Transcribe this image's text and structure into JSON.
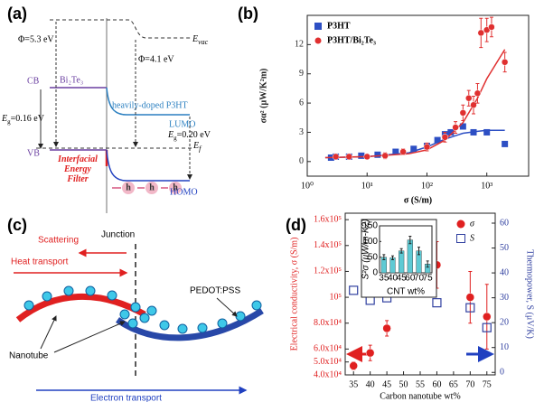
{
  "diagram_a": {
    "panel_label": "(a)",
    "phi_left": "Φ=5.3 eV",
    "phi_right": "Φ=4.1 eV",
    "evac": {
      "main": "E",
      "sub": "vac"
    },
    "cb": "CB",
    "bi2te3": "Bi₂Te₃",
    "p3ht": "heavily-doped P3HT",
    "lumo": "LUMO",
    "eg_left": {
      "main": "E",
      "sub": "g",
      "rest": "=0.16 eV"
    },
    "eg_right": {
      "main": "E",
      "sub": "g",
      "rest": "=0.20 eV"
    },
    "ef": {
      "main": "E",
      "sub": "f"
    },
    "vb": "VB",
    "filter": [
      "Interfacial",
      "Energy",
      "Filter"
    ],
    "homo": "HOMO",
    "holes": [
      "h",
      "h",
      "h"
    ]
  },
  "diagram_c": {
    "panel_label": "(c)",
    "junction": "Junction",
    "scattering": "Scattering",
    "heat": "Heat transport",
    "pedot": "PEDOT:PSS",
    "nanotube": "Nanotube",
    "electron": "Electron transport"
  },
  "chart_data": [
    {
      "type": "scatter",
      "panel_label": "(b)",
      "xlabel": "σ (S/m)",
      "ylabel": "σα² (μW/K²m)",
      "xscale": "log",
      "xlim": [
        1,
        5000
      ],
      "ylim": [
        -1.5,
        15
      ],
      "xticks": [
        {
          "value": 1,
          "label": "10⁰"
        },
        {
          "value": 10,
          "label": "10¹"
        },
        {
          "value": 100,
          "label": "10²"
        },
        {
          "value": 1000,
          "label": "10³"
        }
      ],
      "yticks": [
        0,
        3,
        6,
        9,
        12
      ],
      "legend": "upper left",
      "series": [
        {
          "name": "P3HT",
          "color": "#2d4fc4",
          "marker": "square",
          "x": [
            2.5,
            3,
            5,
            8,
            15,
            30,
            60,
            100,
            150,
            200,
            250,
            400,
            600,
            1000,
            2000
          ],
          "values": [
            0.4,
            0.5,
            0.5,
            0.6,
            0.7,
            1.0,
            1.3,
            1.6,
            2.2,
            2.8,
            3.0,
            3.6,
            3.0,
            3.0,
            1.8
          ],
          "fit": {
            "x": [
              2,
              10,
              50,
              100,
              200,
              400,
              700,
              1000,
              2000
            ],
            "values": [
              0.4,
              0.5,
              0.9,
              1.5,
              2.3,
              2.9,
              3.1,
              3.2,
              3.2
            ]
          }
        },
        {
          "name": "P3HT/Bi₂Te₃",
          "color": "#e03030",
          "marker": "circle",
          "x": [
            3,
            5,
            10,
            20,
            40,
            100,
            200,
            300,
            400,
            500,
            600,
            700,
            800,
            1000,
            1200,
            2000
          ],
          "values": [
            0.5,
            0.5,
            0.5,
            0.6,
            1.0,
            1.5,
            2.5,
            3.5,
            5.0,
            6.5,
            5.8,
            7.0,
            13.2,
            13.5,
            13.8,
            10.2
          ],
          "errors": [
            0.2,
            0.2,
            0.2,
            0.3,
            0.3,
            0.4,
            0.5,
            0.6,
            0.8,
            0.8,
            0.9,
            1.0,
            1.5,
            1.2,
            1.0,
            1.0
          ],
          "fit": {
            "x": [
              2,
              10,
              50,
              100,
              200,
              400,
              700,
              1000,
              2000
            ],
            "values": [
              0.4,
              0.5,
              0.8,
              1.2,
              2.2,
              4.0,
              6.5,
              8.5,
              11.5
            ]
          }
        }
      ]
    },
    {
      "type": "scatter",
      "panel_label": "(d)",
      "xlabel": "Carbon nanotube wt%",
      "ylabel": "Electrical conductivity, σ (S/m)",
      "y2label": "Thermopower, S (μV/K)",
      "y_color": "#e02020",
      "y2_color": "#3040a0",
      "x": [
        35,
        40,
        45,
        60,
        70,
        75
      ],
      "xlim": [
        32.5,
        77.5
      ],
      "xticks": [
        35,
        40,
        45,
        50,
        55,
        60,
        65,
        70,
        75
      ],
      "ylim": [
        40000,
        165000
      ],
      "yticks": [
        {
          "value": 40000,
          "label": "4.0x10⁴"
        },
        {
          "value": 50000,
          "label": "5.0x10⁴"
        },
        {
          "value": 60000,
          "label": "6.0x10⁴"
        },
        {
          "value": 80000,
          "label": "8.0x10⁴"
        },
        {
          "value": 100000,
          "label": "10⁵"
        },
        {
          "value": 120000,
          "label": "1.2x10⁵"
        },
        {
          "value": 140000,
          "label": "1.4x10⁵"
        },
        {
          "value": 160000,
          "label": "1.6x10⁵"
        }
      ],
      "y2lim": [
        -1,
        64
      ],
      "y2ticks": [
        0,
        10,
        20,
        30,
        40,
        50,
        60
      ],
      "legend": "upper right",
      "series": [
        {
          "name": "σ",
          "color": "#e02020",
          "marker": "circle",
          "values": [
            47000,
            57000,
            76000,
            125000,
            100000,
            85000
          ],
          "errors": [
            3000,
            6000,
            6000,
            18000,
            20000,
            25000
          ]
        },
        {
          "name": "S",
          "color": "#3040a0",
          "marker": "open-square",
          "axis": "y2",
          "values": [
            33,
            29,
            30,
            28,
            26,
            18
          ]
        }
      ]
    },
    {
      "type": "bar",
      "xlabel": "CNT wt%",
      "ylabel": "S²σ (μW/m-K2)",
      "categories": [
        "35",
        "40",
        "45",
        "60",
        "70",
        "75"
      ],
      "values": [
        50,
        48,
        70,
        105,
        70,
        28
      ],
      "errors": [
        8,
        6,
        7,
        12,
        12,
        10
      ],
      "color": "#5ecad4",
      "ylim": [
        0,
        150
      ],
      "yticks": [
        0,
        50,
        100,
        150
      ]
    }
  ]
}
